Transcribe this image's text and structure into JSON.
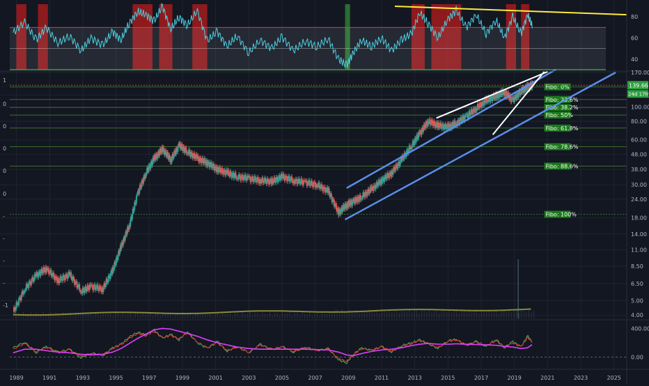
{
  "colors": {
    "background": "#131722",
    "grid": "#1f2430",
    "candle_up": "#26a69a",
    "candle_down": "#ef5350",
    "fibo_line": "#3d6e2d",
    "fibo_label_bg": "#1b7a1b",
    "channel": "#5b8ee8",
    "wedge": "#ffffff",
    "trend_yellow": "#ffeb3b",
    "rsi_line": "#4dd0e1",
    "rsi_bands": "#e0e0e0",
    "rsi_upper": "#e53935",
    "rsi_lower": "#4caf50",
    "overbought_zone": "#b71c1c",
    "oversold_zone": "#2e7d32",
    "volume_ma": "#8a8a36",
    "macd": "#e040fb",
    "stoch_k": "#4caf50",
    "stoch_d": "#e53935",
    "price_tag_bg": "#2e9e3f",
    "last_price_line": "#e53935"
  },
  "left_labels": [
    "1",
    "0",
    "0",
    "0",
    "0",
    "0",
    "-",
    "-",
    "-",
    "-",
    "-1"
  ],
  "chart_data": [
    {
      "panel": "rsi",
      "type": "line",
      "y_ticks": [
        "80",
        "60",
        "40"
      ],
      "ylim": [
        30,
        92
      ],
      "levels": [
        70,
        50,
        30
      ],
      "x": [
        1988.8,
        1989.5,
        1990.2,
        1990.8,
        1991.5,
        1992.2,
        1992.9,
        1993.5,
        1994.2,
        1994.8,
        1995.3,
        1995.8,
        1996.3,
        1996.8,
        1997.3,
        1997.8,
        1998.3,
        1998.8,
        1999.3,
        1999.9,
        2000.5,
        2001.1,
        2001.7,
        2002.3,
        2003,
        2003.7,
        2004.4,
        2005,
        2005.7,
        2006.4,
        2007.1,
        2007.8,
        2008.4,
        2008.9,
        2009.3,
        2009.8,
        2010.4,
        2011,
        2011.6,
        2012.2,
        2012.8,
        2013.3,
        2013.8,
        2014.4,
        2015,
        2015.5,
        2016.1,
        2016.7,
        2017.3,
        2017.9,
        2018.4,
        2018.9,
        2019.4,
        2019.8,
        2020.1
      ],
      "y": [
        65,
        75,
        58,
        70,
        55,
        62,
        48,
        60,
        53,
        66,
        58,
        74,
        85,
        82,
        76,
        90,
        68,
        80,
        72,
        86,
        57,
        66,
        52,
        62,
        46,
        58,
        50,
        61,
        48,
        57,
        52,
        59,
        40,
        34,
        46,
        58,
        52,
        60,
        48,
        58,
        64,
        84,
        74,
        60,
        78,
        86,
        70,
        82,
        64,
        77,
        60,
        80,
        64,
        82,
        70
      ]
    },
    {
      "panel": "price",
      "type": "candlestick",
      "scale": "log",
      "x_ticks": [
        "1989",
        "1991",
        "1993",
        "1995",
        "1997",
        "1999",
        "2001",
        "2003",
        "2005",
        "2007",
        "2009",
        "2011",
        "2013",
        "2015",
        "2017",
        "2019",
        "2021",
        "2023",
        "2025"
      ],
      "y_ticks": [
        "170.00",
        "120.00",
        "100.00",
        "80.00",
        "60.00",
        "48.00",
        "38.00",
        "30.00",
        "24.00",
        "18.00",
        "14.00",
        "11.00",
        "8.50",
        "6.50",
        "5.00",
        "4.00"
      ],
      "ylim": [
        3.8,
        170
      ],
      "x": [
        1988.8,
        1989.5,
        1990.2,
        1990.8,
        1991.5,
        1992.2,
        1992.9,
        1993.5,
        1994.2,
        1994.8,
        1995.3,
        1995.8,
        1996.3,
        1996.8,
        1997.3,
        1997.8,
        1998.3,
        1998.8,
        1999.3,
        1999.9,
        2000.5,
        2001.1,
        2001.7,
        2002.3,
        2003,
        2003.7,
        2004.4,
        2005,
        2005.7,
        2006.4,
        2007.1,
        2007.8,
        2008.4,
        2008.9,
        2009.3,
        2009.8,
        2010.4,
        2011,
        2011.6,
        2012.2,
        2012.8,
        2013.3,
        2013.8,
        2014.4,
        2015,
        2015.5,
        2016.1,
        2016.7,
        2017.3,
        2017.9,
        2018.4,
        2018.9,
        2019.4,
        2019.8,
        2020.1
      ],
      "close": [
        4.2,
        6.0,
        7.4,
        8.2,
        6.8,
        7.5,
        5.8,
        6.2,
        6.0,
        8.0,
        11.5,
        16.0,
        26.0,
        36.0,
        45.0,
        52.0,
        44.0,
        55.0,
        50.0,
        45.0,
        42.0,
        38.0,
        36.0,
        34.0,
        33.0,
        32.0,
        31.5,
        34.0,
        32.0,
        31.0,
        30.0,
        27.0,
        19.5,
        22.0,
        23.0,
        25.0,
        28.0,
        32.0,
        36.0,
        44.0,
        55.0,
        66.0,
        80.0,
        75.0,
        73.0,
        78.0,
        86.0,
        98.0,
        110.0,
        118.0,
        126.0,
        110.0,
        128.0,
        135.0,
        139.66
      ],
      "last_price": "139.66",
      "countdown": "24d 17h",
      "fibonacci": [
        {
          "label": "Fibo:  0%",
          "value": 136
        },
        {
          "label": "Fibo: 23.6%",
          "value": 112
        },
        {
          "label": "Fibo: 38.2%",
          "value": 99
        },
        {
          "label": "Fibo:  50%",
          "value": 88
        },
        {
          "label": "Fibo: 61.8%",
          "value": 72
        },
        {
          "label": "Fibo: 78.6%",
          "value": 54
        },
        {
          "label": "Fibo: 88.6%",
          "value": 40
        },
        {
          "label": "Fibo: 100%",
          "value": 19
        }
      ],
      "volume_ma_level": 4.05
    },
    {
      "panel": "oscillator",
      "type": "line",
      "y_ticks": [
        "400.00",
        "0.00"
      ],
      "ylim": [
        -150,
        500
      ],
      "x": [
        1988.8,
        1989.5,
        1990.2,
        1990.8,
        1991.5,
        1992.2,
        1992.9,
        1993.5,
        1994.2,
        1994.8,
        1995.3,
        1995.8,
        1996.3,
        1996.8,
        1997.3,
        1997.8,
        1998.3,
        1998.8,
        1999.3,
        1999.9,
        2000.5,
        2001.1,
        2001.7,
        2002.3,
        2003,
        2003.7,
        2004.4,
        2005,
        2005.7,
        2006.4,
        2007.1,
        2007.8,
        2008.4,
        2008.9,
        2009.3,
        2009.8,
        2010.4,
        2011,
        2011.6,
        2012.2,
        2012.8,
        2013.3,
        2013.8,
        2014.4,
        2015,
        2015.5,
        2016.1,
        2016.7,
        2017.3,
        2017.9,
        2018.4,
        2018.9,
        2019.4,
        2019.8,
        2020.1
      ],
      "series": [
        {
          "key": "stoch_k",
          "values": [
            130,
            210,
            60,
            150,
            70,
            110,
            -10,
            60,
            20,
            130,
            180,
            280,
            350,
            310,
            380,
            260,
            320,
            240,
            360,
            200,
            120,
            220,
            80,
            150,
            60,
            180,
            100,
            150,
            70,
            140,
            90,
            120,
            -40,
            -80,
            40,
            130,
            90,
            150,
            70,
            160,
            200,
            240,
            190,
            120,
            230,
            250,
            160,
            220,
            150,
            250,
            130,
            220,
            140,
            300,
            200
          ]
        },
        {
          "key": "stoch_d",
          "values": [
            110,
            190,
            80,
            140,
            60,
            100,
            10,
            50,
            30,
            120,
            170,
            260,
            330,
            300,
            360,
            270,
            300,
            250,
            340,
            210,
            130,
            200,
            90,
            140,
            70,
            170,
            110,
            140,
            80,
            130,
            95,
            110,
            -20,
            -60,
            30,
            120,
            100,
            140,
            80,
            150,
            190,
            230,
            185,
            130,
            220,
            240,
            170,
            210,
            160,
            230,
            140,
            200,
            150,
            270,
            210
          ]
        },
        {
          "key": "macd",
          "values": [
            60,
            110,
            110,
            90,
            70,
            60,
            40,
            30,
            40,
            70,
            120,
            190,
            260,
            320,
            380,
            400,
            390,
            360,
            330,
            290,
            240,
            200,
            170,
            140,
            120,
            110,
            110,
            110,
            110,
            110,
            105,
            100,
            70,
            30,
            20,
            50,
            80,
            100,
            110,
            130,
            160,
            180,
            190,
            180,
            180,
            185,
            180,
            175,
            170,
            165,
            150,
            140,
            120,
            130,
            180
          ]
        }
      ]
    }
  ]
}
